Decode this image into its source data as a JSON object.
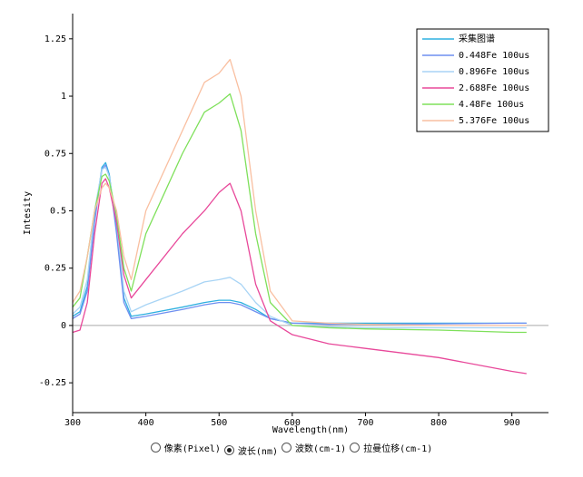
{
  "chart_data": {
    "type": "line",
    "x_label": "Wavelength(nm)",
    "y_label": "Intesity",
    "x": [
      300,
      310,
      320,
      330,
      340,
      345,
      350,
      360,
      370,
      380,
      400,
      450,
      480,
      500,
      515,
      530,
      550,
      570,
      600,
      650,
      700,
      800,
      900,
      920
    ],
    "series": [
      {
        "name": "采集图谱",
        "color": "#2fb0e0",
        "values": [
          0.04,
          0.06,
          0.17,
          0.47,
          0.69,
          0.71,
          0.66,
          0.42,
          0.12,
          0.04,
          0.05,
          0.08,
          0.1,
          0.11,
          0.11,
          0.1,
          0.07,
          0.03,
          0.01,
          0.01,
          0.01,
          0.01,
          0.01,
          0.01
        ]
      },
      {
        "name": "0.448Fe 100us",
        "color": "#6f8ff0",
        "values": [
          0.03,
          0.05,
          0.15,
          0.45,
          0.68,
          0.7,
          0.65,
          0.4,
          0.1,
          0.03,
          0.04,
          0.07,
          0.09,
          0.1,
          0.1,
          0.09,
          0.06,
          0.03,
          0.01,
          0.005,
          0.005,
          0.007,
          0.01,
          0.01
        ]
      },
      {
        "name": "0.896Fe 100us",
        "color": "#a8d4f5",
        "values": [
          0.05,
          0.08,
          0.2,
          0.5,
          0.68,
          0.69,
          0.65,
          0.45,
          0.15,
          0.06,
          0.09,
          0.15,
          0.19,
          0.2,
          0.21,
          0.18,
          0.1,
          0.04,
          0.0,
          -0.005,
          -0.01,
          -0.01,
          -0.01,
          -0.01
        ]
      },
      {
        "name": "2.688Fe 100us",
        "color": "#e8489a",
        "values": [
          -0.03,
          -0.02,
          0.1,
          0.4,
          0.62,
          0.64,
          0.6,
          0.45,
          0.22,
          0.12,
          0.2,
          0.4,
          0.5,
          0.58,
          0.62,
          0.5,
          0.18,
          0.02,
          -0.04,
          -0.08,
          -0.1,
          -0.14,
          -0.2,
          -0.21
        ]
      },
      {
        "name": "4.48Fe 100us",
        "color": "#7ee05a",
        "values": [
          0.08,
          0.12,
          0.3,
          0.5,
          0.65,
          0.66,
          0.63,
          0.48,
          0.25,
          0.15,
          0.4,
          0.75,
          0.93,
          0.97,
          1.01,
          0.85,
          0.4,
          0.1,
          0.0,
          -0.01,
          -0.015,
          -0.02,
          -0.03,
          -0.03
        ]
      },
      {
        "name": "5.376Fe 100us",
        "color": "#f9bfa0",
        "values": [
          0.1,
          0.15,
          0.3,
          0.5,
          0.6,
          0.62,
          0.6,
          0.5,
          0.3,
          0.2,
          0.5,
          0.85,
          1.06,
          1.1,
          1.16,
          1.0,
          0.5,
          0.15,
          0.02,
          0.01,
          0.005,
          0.0,
          0.0,
          0.0
        ]
      }
    ],
    "xlim": [
      300,
      950
    ],
    "ylim": [
      -0.38,
      1.36
    ],
    "xticks": [
      300,
      400,
      500,
      600,
      700,
      800,
      900
    ],
    "yticks": [
      -0.25,
      0,
      0.25,
      0.5,
      0.75,
      1,
      1.25
    ],
    "zero_line": true
  },
  "radio_options": [
    "像素(Pixel)",
    "波长(nm)",
    "波数(cm-1)",
    "拉曼位移(cm-1)"
  ],
  "radio_selected": 1
}
